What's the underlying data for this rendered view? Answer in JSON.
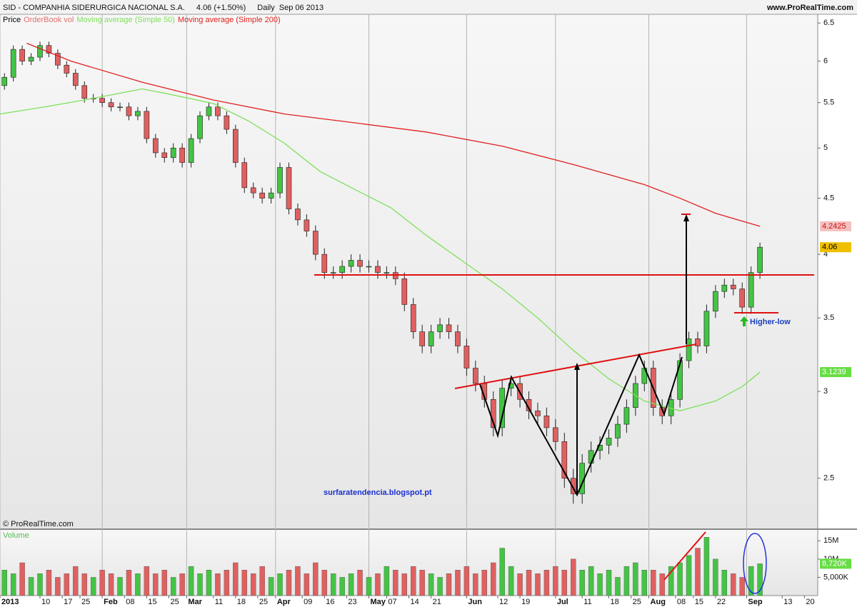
{
  "chart_data": [
    {
      "type": "candlestick",
      "title": "SID - COMPANHIA SIDERURGICA NACIONAL S.A.",
      "quote": "4.06 (+1.50%)",
      "period": "Daily",
      "date": "Sep 06 2013",
      "source": "www.ProRealTime.com",
      "copyright": "© ProRealTime.com",
      "annotations": [
        "surfaratendencia.blogspot.pt",
        "Higher-low"
      ],
      "name": "Price",
      "legend_extra": {
        "name": "OrderBook vol",
        "color": "#e07070"
      },
      "up_color": "#44c444",
      "down_color": "#e06060",
      "x": [
        1,
        3,
        5,
        7,
        9,
        11,
        13,
        15,
        17,
        19,
        21,
        23,
        25,
        27,
        29,
        31,
        33,
        35,
        37,
        39,
        41,
        43,
        45,
        47,
        49,
        51,
        53,
        55,
        57,
        59,
        61,
        63,
        65,
        67,
        69,
        71,
        73,
        75,
        77,
        79,
        81,
        83,
        85,
        87,
        89,
        91,
        93,
        95,
        97,
        99,
        101,
        103,
        105,
        107,
        109,
        111,
        113,
        115,
        117,
        119,
        121,
        123,
        125,
        127,
        129,
        131,
        133,
        135,
        137,
        139,
        141,
        143,
        145,
        147,
        149,
        151,
        153,
        155,
        157,
        159,
        161,
        163,
        165,
        167,
        169,
        171
      ],
      "open": [
        5.7,
        5.8,
        6.15,
        6.0,
        6.05,
        6.2,
        6.1,
        5.95,
        5.85,
        5.7,
        5.55,
        5.55,
        5.5,
        5.45,
        5.45,
        5.35,
        5.4,
        5.1,
        4.95,
        4.9,
        5.0,
        4.85,
        5.1,
        5.35,
        5.45,
        5.35,
        5.2,
        4.85,
        4.6,
        4.55,
        4.5,
        4.55,
        4.8,
        4.4,
        4.3,
        4.2,
        4.0,
        3.85,
        3.85,
        3.9,
        3.95,
        3.9,
        3.9,
        3.85,
        3.85,
        3.8,
        3.6,
        3.4,
        3.3,
        3.4,
        3.45,
        3.4,
        3.3,
        3.15,
        3.05,
        2.95,
        2.78,
        3.02,
        3.05,
        2.95,
        2.88,
        2.85,
        2.78,
        2.7,
        2.5,
        2.42,
        2.58,
        2.65,
        2.68,
        2.72,
        2.8,
        2.9,
        3.05,
        3.15,
        2.9,
        2.85,
        2.95,
        3.2,
        3.35,
        3.3,
        3.55,
        3.7,
        3.75,
        3.72,
        3.58,
        3.85
      ],
      "high": [
        5.85,
        6.2,
        6.2,
        6.1,
        6.25,
        6.25,
        6.15,
        6.0,
        5.9,
        5.75,
        5.6,
        5.6,
        5.55,
        5.5,
        5.5,
        5.45,
        5.45,
        5.15,
        5.0,
        5.05,
        5.05,
        5.15,
        5.4,
        5.5,
        5.5,
        5.4,
        5.25,
        4.9,
        4.65,
        4.6,
        4.6,
        4.85,
        4.85,
        4.45,
        4.35,
        4.25,
        4.05,
        3.9,
        3.95,
        4.0,
        4.0,
        3.95,
        3.95,
        3.9,
        3.9,
        3.85,
        3.65,
        3.45,
        3.45,
        3.5,
        3.5,
        3.45,
        3.35,
        3.2,
        3.1,
        3.0,
        3.07,
        3.1,
        3.1,
        3.0,
        2.93,
        2.9,
        2.83,
        2.75,
        2.55,
        2.63,
        2.7,
        2.73,
        2.77,
        2.85,
        2.95,
        3.1,
        3.2,
        3.2,
        2.95,
        3.0,
        3.25,
        3.4,
        3.4,
        3.6,
        3.75,
        3.8,
        3.8,
        3.77,
        3.9,
        4.1
      ],
      "low": [
        5.65,
        5.75,
        5.95,
        5.95,
        6.0,
        6.05,
        5.9,
        5.8,
        5.65,
        5.5,
        5.5,
        5.45,
        5.4,
        5.4,
        5.3,
        5.3,
        5.05,
        4.9,
        4.85,
        4.85,
        4.8,
        4.8,
        5.05,
        5.3,
        5.3,
        5.15,
        4.8,
        4.55,
        4.5,
        4.45,
        4.45,
        4.5,
        4.35,
        4.25,
        4.15,
        3.95,
        3.8,
        3.8,
        3.8,
        3.85,
        3.85,
        3.85,
        3.8,
        3.8,
        3.75,
        3.55,
        3.35,
        3.25,
        3.25,
        3.35,
        3.35,
        3.25,
        3.1,
        3.0,
        2.9,
        2.73,
        2.73,
        2.97,
        2.9,
        2.83,
        2.8,
        2.73,
        2.65,
        2.45,
        2.37,
        2.37,
        2.53,
        2.6,
        2.63,
        2.67,
        2.75,
        2.85,
        3.0,
        2.85,
        2.8,
        2.8,
        2.9,
        3.15,
        3.25,
        3.25,
        3.5,
        3.65,
        3.67,
        3.53,
        3.53,
        3.8
      ],
      "close": [
        5.8,
        6.15,
        6.0,
        6.05,
        6.2,
        6.1,
        5.95,
        5.85,
        5.7,
        5.55,
        5.55,
        5.5,
        5.45,
        5.45,
        5.35,
        5.4,
        5.1,
        4.95,
        4.9,
        5.0,
        4.85,
        5.1,
        5.35,
        5.45,
        5.35,
        5.2,
        4.85,
        4.6,
        4.55,
        4.5,
        4.55,
        4.8,
        4.4,
        4.3,
        4.2,
        4.0,
        3.85,
        3.85,
        3.9,
        3.95,
        3.9,
        3.9,
        3.85,
        3.85,
        3.8,
        3.6,
        3.4,
        3.3,
        3.4,
        3.45,
        3.4,
        3.3,
        3.15,
        3.05,
        2.95,
        2.78,
        3.02,
        3.05,
        2.95,
        2.88,
        2.85,
        2.78,
        2.7,
        2.5,
        2.42,
        2.58,
        2.65,
        2.68,
        2.72,
        2.8,
        2.9,
        3.05,
        3.15,
        2.9,
        2.85,
        2.95,
        3.2,
        3.35,
        3.3,
        3.55,
        3.7,
        3.75,
        3.72,
        3.58,
        3.85,
        4.06
      ],
      "series": [
        {
          "name": "Moving average (Simple 50)",
          "color": "#7ee05a",
          "x": [
            0,
            10,
            19,
            32,
            37,
            48,
            56,
            64,
            72,
            80,
            88,
            96,
            105,
            113,
            121,
            129,
            137,
            145,
            153,
            161,
            167,
            171
          ],
          "values": [
            5.37,
            5.45,
            5.53,
            5.66,
            5.61,
            5.49,
            5.29,
            5.05,
            4.76,
            4.58,
            4.41,
            4.16,
            3.92,
            3.72,
            3.5,
            3.27,
            3.08,
            2.94,
            2.88,
            2.94,
            3.03,
            3.1239
          ]
        },
        {
          "name": "Moving average (Simple 200)",
          "color": "#e02020",
          "x": [
            6,
            16,
            32,
            48,
            64,
            80,
            96,
            113,
            129,
            145,
            153,
            161,
            171
          ],
          "values": [
            6.23,
            6.0,
            5.74,
            5.53,
            5.37,
            5.27,
            5.17,
            5.02,
            4.83,
            4.63,
            4.5,
            4.36,
            4.2425
          ]
        }
      ],
      "last_values": [
        4.2425,
        4.06,
        3.1239
      ],
      "last_colors": [
        "#f4c0c0",
        "#f0c000",
        "#66dd44"
      ],
      "log_scale": true,
      "grid": true,
      "xlim": [
        0,
        184
      ],
      "ylim": [
        2.25,
        6.62
      ],
      "yticks": [
        2.5,
        3,
        3.5,
        4,
        4.5,
        5,
        5.5,
        6,
        6.5
      ],
      "xticks": [
        {
          "value": 0,
          "label": "2013"
        },
        {
          "value": 9,
          "label": "10"
        },
        {
          "value": 14,
          "label": "17"
        },
        {
          "value": 18,
          "label": "25"
        },
        {
          "value": 23,
          "label": "Feb"
        },
        {
          "value": 28,
          "label": "08"
        },
        {
          "value": 33,
          "label": "15"
        },
        {
          "value": 38,
          "label": "25"
        },
        {
          "value": 42,
          "label": "Mar"
        },
        {
          "value": 48,
          "label": "11"
        },
        {
          "value": 53,
          "label": "18"
        },
        {
          "value": 58,
          "label": "25"
        },
        {
          "value": 62,
          "label": "Apr"
        },
        {
          "value": 68,
          "label": "09"
        },
        {
          "value": 73,
          "label": "16"
        },
        {
          "value": 78,
          "label": "23"
        },
        {
          "value": 83,
          "label": "May"
        },
        {
          "value": 87,
          "label": "07"
        },
        {
          "value": 92,
          "label": "14"
        },
        {
          "value": 97,
          "label": "21"
        },
        {
          "value": 105,
          "label": "Jun"
        },
        {
          "value": 112,
          "label": "12"
        },
        {
          "value": 117,
          "label": "19"
        },
        {
          "value": 125,
          "label": "Jul"
        },
        {
          "value": 131,
          "label": "11"
        },
        {
          "value": 137,
          "label": "18"
        },
        {
          "value": 142,
          "label": "25"
        },
        {
          "value": 146,
          "label": "Aug"
        },
        {
          "value": 152,
          "label": "08"
        },
        {
          "value": 156,
          "label": "15"
        },
        {
          "value": 161,
          "label": "22"
        },
        {
          "value": 168,
          "label": "Sep"
        },
        {
          "value": 176,
          "label": "13"
        },
        {
          "value": 181,
          "label": "20"
        }
      ]
    },
    {
      "type": "bar",
      "title": "Volume",
      "values": [
        7,
        6,
        9,
        5,
        6,
        7,
        5,
        6,
        8,
        6,
        5,
        7,
        6,
        5,
        7,
        6,
        8,
        6,
        7,
        5,
        6,
        8,
        6,
        7,
        6,
        7,
        9,
        7,
        6,
        8,
        5,
        6,
        7,
        8,
        6,
        9,
        7,
        6,
        5,
        6,
        7,
        5,
        6,
        8,
        7,
        6,
        8,
        7,
        6,
        5,
        6,
        7,
        8,
        6,
        7,
        9,
        13,
        8,
        6,
        7,
        6,
        7,
        8,
        7,
        10,
        7,
        8,
        6,
        7,
        5,
        8,
        9,
        7,
        7,
        6,
        8,
        9,
        11,
        13,
        16,
        10,
        7,
        6,
        5,
        8,
        8.72
      ],
      "last_label": {
        "value": 8.72,
        "label": "8,720K"
      },
      "last_color": "#66dd44",
      "ylim": [
        0,
        18
      ],
      "yticks": [
        {
          "value": 5,
          "label": "5,000K"
        },
        {
          "value": 10,
          "label": "10M"
        },
        {
          "value": 15,
          "label": "15M"
        }
      ]
    }
  ]
}
